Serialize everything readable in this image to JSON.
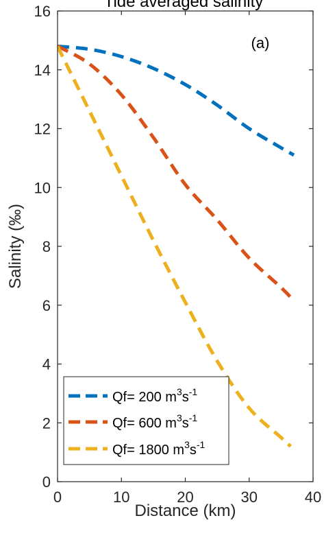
{
  "chart_data": {
    "type": "line",
    "title": "Tide averaged salinity",
    "annotation": "(a)",
    "xlabel": "Distance (km)",
    "ylabel": "Salinity (‰)",
    "xlim": [
      0,
      40
    ],
    "ylim": [
      0,
      16
    ],
    "xticks": [
      0,
      10,
      20,
      30,
      40
    ],
    "yticks": [
      0,
      2,
      4,
      6,
      8,
      10,
      12,
      14,
      16
    ],
    "grid": false,
    "legend_position": "bottom-left",
    "line_style": "dashed",
    "series": [
      {
        "name": "Qf= 200 m3s-1",
        "label_parts": {
          "prefix": "Qf= 200 m",
          "sup1": "3",
          "mid": "s",
          "sup2": "-1"
        },
        "color": "#0072BD",
        "x": [
          0,
          5,
          10,
          15,
          20,
          25,
          30,
          35,
          37
        ],
        "y": [
          14.8,
          14.7,
          14.45,
          14.05,
          13.5,
          12.8,
          12.0,
          11.35,
          11.1
        ]
      },
      {
        "name": "Qf= 600 m3s-1",
        "label_parts": {
          "prefix": "Qf= 600 m",
          "sup1": "3",
          "mid": "s",
          "sup2": "-1"
        },
        "color": "#D95319",
        "x": [
          0,
          5,
          10,
          15,
          20,
          25,
          30,
          35,
          37
        ],
        "y": [
          14.8,
          14.2,
          13.15,
          11.7,
          10.1,
          8.9,
          7.6,
          6.6,
          6.15
        ]
      },
      {
        "name": "Qf= 1800 m3s-1",
        "label_parts": {
          "prefix": "Qf= 1800 m",
          "sup1": "3",
          "mid": "s",
          "sup2": "-1"
        },
        "color": "#EDB120",
        "x": [
          0,
          5,
          10,
          15,
          20,
          25,
          30,
          35,
          36.5
        ],
        "y": [
          14.8,
          12.6,
          10.4,
          8.2,
          6.1,
          4.1,
          2.5,
          1.5,
          1.2
        ]
      }
    ]
  }
}
